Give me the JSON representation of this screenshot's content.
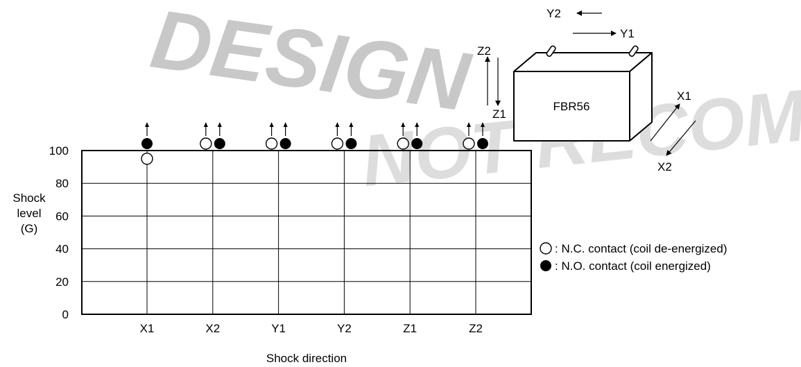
{
  "watermark": {
    "line1": "NOT RECOMMENDED FOR NEW",
    "line2": "DESIGN"
  },
  "chart_data": {
    "type": "scatter",
    "title": "",
    "xlabel": "Shock direction",
    "ylabel_lines": [
      "Shock",
      "level",
      "(G)"
    ],
    "ylim": [
      0,
      100
    ],
    "yticks": [
      "0",
      "20",
      "40",
      "60",
      "80",
      "100"
    ],
    "grid": true,
    "categories": [
      "X1",
      "X2",
      "Y1",
      "Y2",
      "Z1",
      "Z2"
    ],
    "series": [
      {
        "name": ": N.C. contact (coil de-energized)",
        "marker": "open-circle",
        "values": [
          95,
          100,
          100,
          100,
          100,
          100
        ],
        "exceeds_axis": [
          false,
          true,
          true,
          true,
          true,
          true
        ]
      },
      {
        "name": ": N.O. contact (coil energized)",
        "marker": "filled-circle",
        "values": [
          100,
          100,
          100,
          100,
          100,
          100
        ],
        "exceeds_axis": [
          true,
          true,
          true,
          true,
          true,
          true
        ]
      }
    ]
  },
  "diagram": {
    "component_label": "FBR56",
    "axes": [
      "Y2",
      "Y1",
      "Z2",
      "Z1",
      "X1",
      "X2"
    ]
  }
}
